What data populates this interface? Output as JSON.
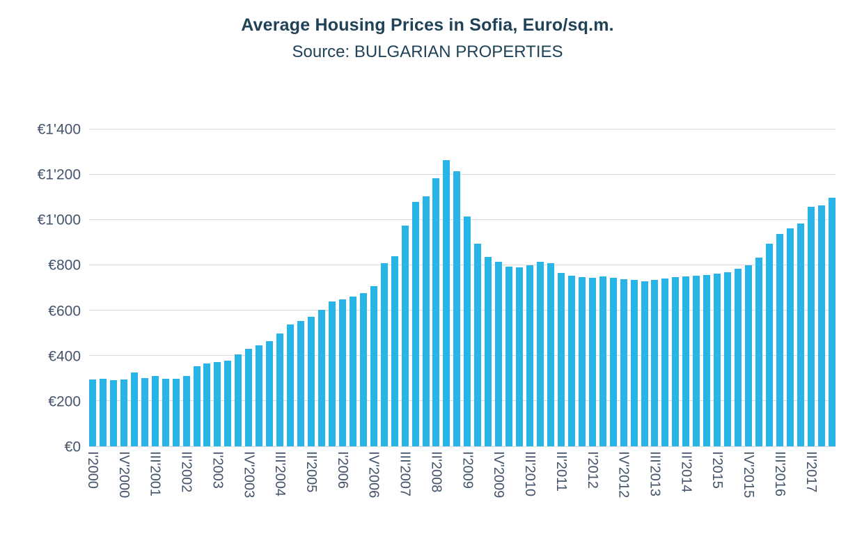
{
  "header": {
    "title": "Average Housing Prices in Sofia, Euro/sq.m.",
    "subtitle": "Source: BULGARIAN PROPERTIES"
  },
  "chart_data": {
    "type": "bar",
    "title": "Average Housing Prices in Sofia, Euro/sq.m.",
    "subtitle": "Source: BULGARIAN PROPERTIES",
    "xlabel": "",
    "ylabel": "",
    "ylim": [
      0,
      1400
    ],
    "grid": true,
    "legend": false,
    "x_tick_every": 3,
    "y_ticks": [
      0,
      200,
      400,
      600,
      800,
      1000,
      1200,
      1400
    ],
    "y_tick_labels": [
      "€0",
      "€200",
      "€400",
      "€600",
      "€800",
      "€1'000",
      "€1'200",
      "€1'400"
    ],
    "visible_x_tick_labels": [
      "I'2000",
      "IV'2000",
      "III'2001",
      "II'2002",
      "I'2003",
      "IV'2003",
      "III'2004",
      "II'2005",
      "I'2006",
      "IV'2006",
      "III'2007",
      "II'2008",
      "I'2009",
      "IV'2009",
      "III'2010",
      "II'2011",
      "I'2012",
      "IV'2012",
      "III'2013",
      "II'2014",
      "I'2015",
      "IV'2015",
      "III'2016",
      "II'2017"
    ],
    "x": [
      "I'2000",
      "II'2000",
      "III'2000",
      "IV'2000",
      "I'2001",
      "II'2001",
      "III'2001",
      "IV'2001",
      "I'2002",
      "II'2002",
      "III'2002",
      "IV'2002",
      "I'2003",
      "II'2003",
      "III'2003",
      "IV'2003",
      "I'2004",
      "II'2004",
      "III'2004",
      "IV'2004",
      "I'2005",
      "II'2005",
      "III'2005",
      "IV'2005",
      "I'2006",
      "II'2006",
      "III'2006",
      "IV'2006",
      "I'2007",
      "II'2007",
      "III'2007",
      "IV'2007",
      "I'2008",
      "II'2008",
      "III'2008",
      "IV'2008",
      "I'2009",
      "II'2009",
      "III'2009",
      "IV'2009",
      "I'2010",
      "II'2010",
      "III'2010",
      "IV'2010",
      "I'2011",
      "II'2011",
      "III'2011",
      "IV'2011",
      "I'2012",
      "II'2012",
      "III'2012",
      "IV'2012",
      "I'2013",
      "II'2013",
      "III'2013",
      "IV'2013",
      "I'2014",
      "II'2014",
      "III'2014",
      "IV'2014",
      "I'2015",
      "II'2015",
      "III'2015",
      "IV'2015",
      "I'2016",
      "II'2016",
      "III'2016",
      "IV'2016",
      "I'2017",
      "II'2017",
      "III'2017",
      "IV'2017"
    ],
    "values": [
      295,
      297,
      292,
      295,
      325,
      303,
      310,
      297,
      300,
      310,
      355,
      365,
      372,
      377,
      405,
      430,
      445,
      465,
      500,
      537,
      555,
      572,
      602,
      640,
      650,
      663,
      678,
      708,
      810,
      840,
      975,
      1080,
      1105,
      1185,
      1265,
      1215,
      1015,
      895,
      838,
      815,
      795,
      790,
      800,
      815,
      808,
      765,
      755,
      748,
      745,
      750,
      745,
      740,
      735,
      730,
      735,
      742,
      748,
      752,
      755,
      758,
      762,
      770,
      785,
      800,
      835,
      895,
      940,
      962,
      985,
      1058,
      1065,
      1098
    ],
    "bar_color": "#29B4E8",
    "grid_color": "#D9D9D9",
    "axis_label_color": "#44546A",
    "title_color": "#1F4257",
    "background_color": "#FFFFFF"
  }
}
